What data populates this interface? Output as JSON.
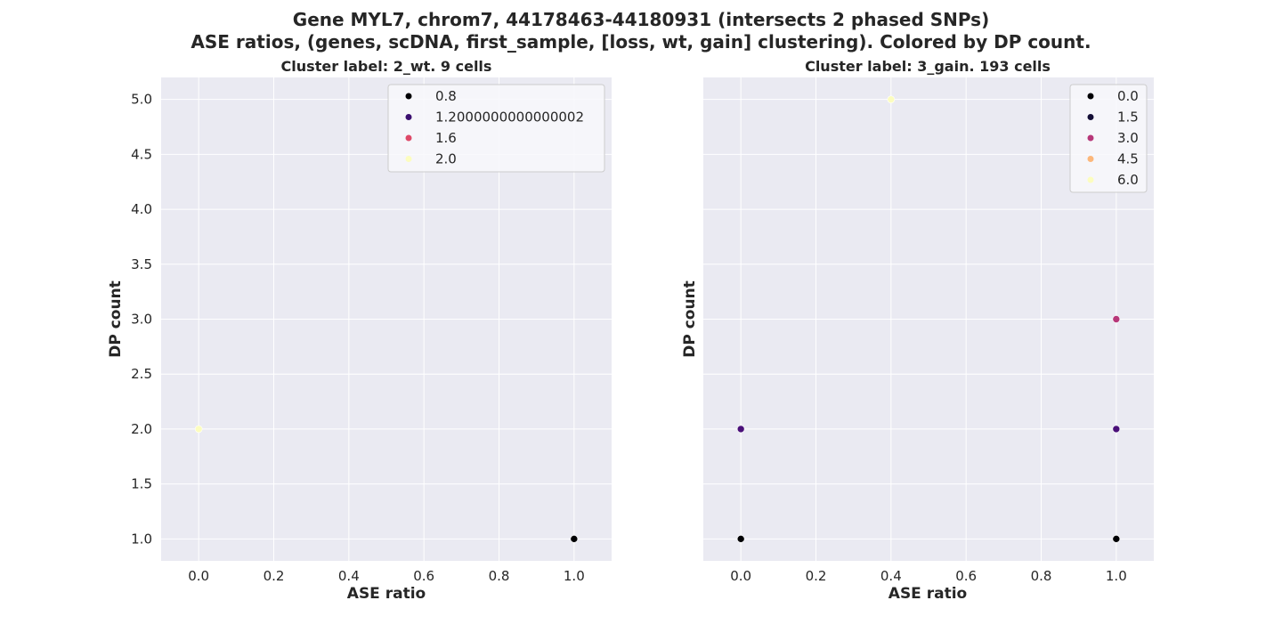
{
  "figure": {
    "title_line1": "Gene MYL7, chrom7, 44178463-44180931 (intersects 2 phased SNPs)",
    "title_line2": "ASE ratios, (genes, scDNA, first_sample, [loss, wt, gain] clustering). Colored by DP count."
  },
  "chart_data": [
    {
      "type": "scatter",
      "title": "Cluster label: 2_wt. 9 cells",
      "xlabel": "ASE ratio",
      "ylabel": "DP count",
      "xlim": [
        -0.1,
        1.1
      ],
      "ylim": [
        0.8,
        5.2
      ],
      "xticks": [
        "0.0",
        "0.2",
        "0.4",
        "0.6",
        "0.8",
        "1.0"
      ],
      "xtick_values": [
        0.0,
        0.2,
        0.4,
        0.6,
        0.8,
        1.0
      ],
      "yticks": [
        "1.0",
        "1.5",
        "2.0",
        "2.5",
        "3.0",
        "3.5",
        "4.0",
        "4.5",
        "5.0"
      ],
      "ytick_values": [
        1.0,
        1.5,
        2.0,
        2.5,
        3.0,
        3.5,
        4.0,
        4.5,
        5.0
      ],
      "grid": true,
      "legend_position": "top-right",
      "legend": [
        {
          "label": "0.8",
          "color": "#000004"
        },
        {
          "label": "1.2000000000000002",
          "color": "#3b0f70"
        },
        {
          "label": "1.6",
          "color": "#de4968"
        },
        {
          "label": "2.0",
          "color": "#fcfdbf"
        }
      ],
      "points": [
        {
          "x": 0.0,
          "y": 2.0,
          "color": "#fcfdbf"
        },
        {
          "x": 1.0,
          "y": 1.0,
          "color": "#000004"
        }
      ]
    },
    {
      "type": "scatter",
      "title": "Cluster label: 3_gain. 193 cells",
      "xlabel": "ASE ratio",
      "ylabel": "DP count",
      "xlim": [
        -0.1,
        1.1
      ],
      "ylim": [
        0.8,
        5.2
      ],
      "xticks": [
        "0.0",
        "0.2",
        "0.4",
        "0.6",
        "0.8",
        "1.0"
      ],
      "xtick_values": [
        0.0,
        0.2,
        0.4,
        0.6,
        0.8,
        1.0
      ],
      "grid": true,
      "legend_position": "top-right",
      "legend": [
        {
          "label": "0.0",
          "color": "#000004"
        },
        {
          "label": "1.5",
          "color": "#140e36"
        },
        {
          "label": "3.0",
          "color": "#b73779"
        },
        {
          "label": "4.5",
          "color": "#fcb77a"
        },
        {
          "label": "6.0",
          "color": "#fcfdbf"
        }
      ],
      "points": [
        {
          "x": 0.4,
          "y": 5.0,
          "color": "#fcfdbf"
        },
        {
          "x": 1.0,
          "y": 3.0,
          "color": "#b73779"
        },
        {
          "x": 0.0,
          "y": 2.0,
          "color": "#4a1079"
        },
        {
          "x": 1.0,
          "y": 2.0,
          "color": "#4a1079"
        },
        {
          "x": 0.0,
          "y": 1.0,
          "color": "#000004"
        },
        {
          "x": 1.0,
          "y": 1.0,
          "color": "#000004"
        }
      ]
    }
  ]
}
